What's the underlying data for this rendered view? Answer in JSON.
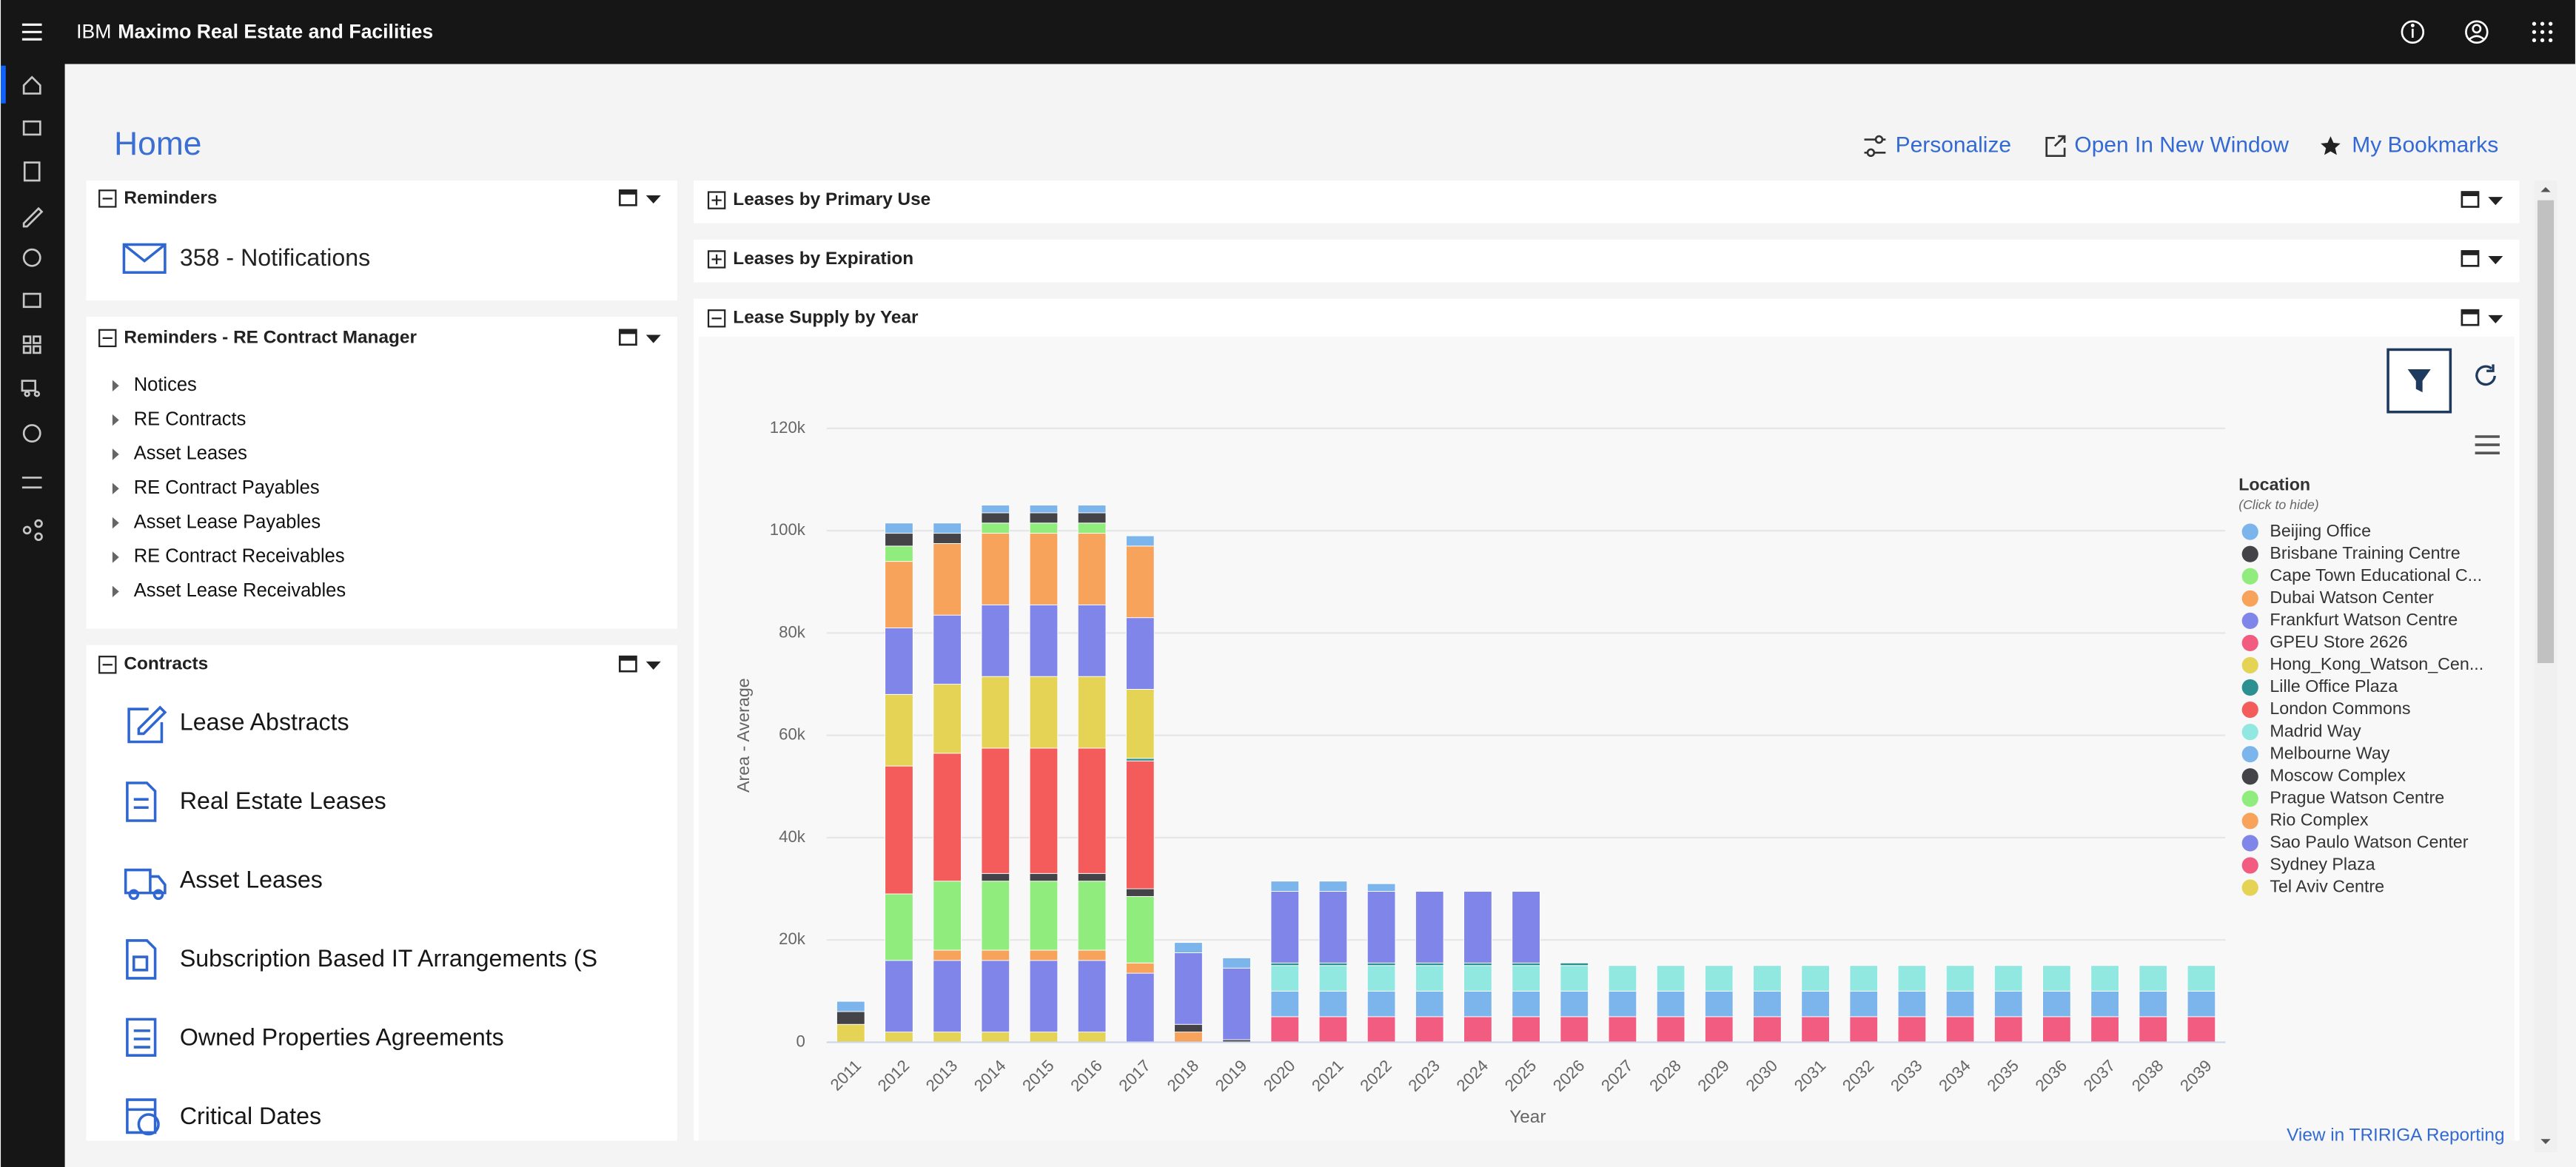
{
  "header": {
    "brand": "IBM",
    "product": "Maximo Real Estate and Facilities"
  },
  "page": {
    "title": "Home",
    "actions": [
      "Personalize",
      "Open In New Window",
      "My Bookmarks"
    ]
  },
  "portlets": {
    "reminders": {
      "title": "Reminders",
      "notification": "358 - Notifications"
    },
    "contract_manager": {
      "title": "Reminders - RE Contract Manager",
      "items": [
        "Notices",
        "RE Contracts",
        "Asset Leases",
        "RE Contract Payables",
        "Asset Lease Payables",
        "RE Contract Receivables",
        "Asset Lease Receivables"
      ]
    },
    "contracts": {
      "title": "Contracts",
      "items": [
        "Lease Abstracts",
        "Real Estate Leases",
        "Asset Leases",
        "Subscription Based IT Arrangements (S",
        "Owned Properties Agreements",
        "Critical Dates"
      ]
    },
    "primary_use": {
      "title": "Leases by Primary Use"
    },
    "expiration": {
      "title": "Leases by Expiration"
    },
    "lease_supply": {
      "title": "Lease Supply by Year",
      "link": "View in TRIRIGA Reporting"
    }
  },
  "chart_data": {
    "type": "bar",
    "stacked": true,
    "x_label": "Year",
    "y_label": "Area - Average",
    "legend_title": "Location",
    "legend_subtitle": "(Click to hide)",
    "legend": "right",
    "grid": true,
    "categories": [
      "2011",
      "2012",
      "2013",
      "2014",
      "2015",
      "2016",
      "2017",
      "2018",
      "2019",
      "2020",
      "2021",
      "2022",
      "2023",
      "2024",
      "2025",
      "2026",
      "2027",
      "2028",
      "2029",
      "2030",
      "2031",
      "2032",
      "2033",
      "2034",
      "2035",
      "2036",
      "2037",
      "2038",
      "2039"
    ],
    "ylim": [
      0,
      120000
    ],
    "yticks": [
      0,
      {
        "value": 20000,
        "label": "20k"
      },
      {
        "value": 40000,
        "label": "40k"
      },
      {
        "value": 60000,
        "label": "60k"
      },
      {
        "value": 80000,
        "label": "80k"
      },
      {
        "value": 100000,
        "label": "100k"
      },
      {
        "value": 120000,
        "label": "120k"
      }
    ],
    "series": [
      {
        "name": "Beijing Office",
        "color": "#7cb5ec",
        "values": [
          0,
          2000,
          2000,
          1500,
          1500,
          1500,
          2000,
          2000,
          2000,
          2000,
          2000,
          1500,
          0,
          0,
          0,
          0,
          0,
          0,
          0,
          0,
          0,
          0,
          0,
          0,
          0,
          0,
          0,
          0,
          0
        ]
      },
      {
        "name": "Brisbane Training Centre",
        "color": "#434348",
        "values": [
          0,
          2500,
          2000,
          2000,
          2000,
          2000,
          0,
          0,
          0,
          0,
          0,
          0,
          0,
          0,
          0,
          0,
          0,
          0,
          0,
          0,
          0,
          0,
          0,
          0,
          0,
          0,
          0,
          0,
          0
        ]
      },
      {
        "name": "Cape Town Educational C...",
        "color": "#90ed7d",
        "values": [
          0,
          3000,
          0,
          2000,
          2000,
          2000,
          0,
          0,
          0,
          0,
          0,
          0,
          0,
          0,
          0,
          0,
          0,
          0,
          0,
          0,
          0,
          0,
          0,
          0,
          0,
          0,
          0,
          0,
          0
        ]
      },
      {
        "name": "Dubai Watson Center",
        "color": "#f7a35c",
        "values": [
          0,
          13000,
          14000,
          14000,
          14000,
          14000,
          14000,
          0,
          0,
          0,
          0,
          0,
          0,
          0,
          0,
          0,
          0,
          0,
          0,
          0,
          0,
          0,
          0,
          0,
          0,
          0,
          0,
          0,
          0
        ]
      },
      {
        "name": "Frankfurt Watson Centre",
        "color": "#8085e9",
        "values": [
          0,
          13000,
          13500,
          14000,
          14000,
          14000,
          14000,
          14000,
          14000,
          14000,
          14000,
          14000,
          14000,
          14000,
          14000,
          0,
          0,
          0,
          0,
          0,
          0,
          0,
          0,
          0,
          0,
          0,
          0,
          0,
          0
        ]
      },
      {
        "name": "GPEU Store 2626",
        "color": "#f15c80",
        "values": [
          0,
          0,
          0,
          0,
          0,
          0,
          0,
          0,
          0,
          0,
          0,
          0,
          0,
          0,
          0,
          0,
          0,
          0,
          0,
          0,
          0,
          0,
          0,
          0,
          0,
          0,
          0,
          0,
          0
        ]
      },
      {
        "name": "Hong_Kong_Watson_Cen...",
        "color": "#e4d354",
        "values": [
          0,
          14000,
          13500,
          14000,
          14000,
          14000,
          13500,
          0,
          0,
          0,
          0,
          0,
          0,
          0,
          0,
          0,
          0,
          0,
          0,
          0,
          0,
          0,
          0,
          0,
          0,
          0,
          0,
          0,
          0
        ]
      },
      {
        "name": "Lille Office Plaza",
        "color": "#2b908f",
        "values": [
          0,
          0,
          0,
          0,
          0,
          0,
          500,
          0,
          0,
          500,
          500,
          500,
          500,
          500,
          500,
          500,
          0,
          0,
          0,
          0,
          0,
          0,
          0,
          0,
          0,
          0,
          0,
          0,
          0
        ]
      },
      {
        "name": "London Commons",
        "color": "#f45b5b",
        "values": [
          0,
          25000,
          25000,
          24500,
          24500,
          24500,
          25000,
          0,
          0,
          0,
          0,
          0,
          0,
          0,
          0,
          0,
          0,
          0,
          0,
          0,
          0,
          0,
          0,
          0,
          0,
          0,
          0,
          0,
          0
        ]
      },
      {
        "name": "Madrid Way",
        "color": "#91e8e1",
        "values": [
          0,
          0,
          0,
          0,
          0,
          0,
          0,
          0,
          0,
          5000,
          5000,
          5000,
          5000,
          5000,
          5000,
          5000,
          5000,
          5000,
          5000,
          5000,
          5000,
          5000,
          5000,
          5000,
          5000,
          5000,
          5000,
          5000,
          5000
        ]
      },
      {
        "name": "Melbourne Way",
        "color": "#7cb5ec",
        "values": [
          2000,
          0,
          0,
          0,
          0,
          0,
          0,
          0,
          0,
          5000,
          5000,
          5000,
          5000,
          5000,
          5000,
          5000,
          5000,
          5000,
          5000,
          5000,
          5000,
          5000,
          5000,
          5000,
          5000,
          5000,
          5000,
          5000,
          5000
        ]
      },
      {
        "name": "Moscow Complex",
        "color": "#434348",
        "values": [
          2500,
          0,
          0,
          1500,
          1500,
          1500,
          1500,
          1500,
          500,
          0,
          0,
          0,
          0,
          0,
          0,
          0,
          0,
          0,
          0,
          0,
          0,
          0,
          0,
          0,
          0,
          0,
          0,
          0,
          0
        ]
      },
      {
        "name": "Prague Watson Centre",
        "color": "#90ed7d",
        "values": [
          0,
          13000,
          13500,
          13500,
          13500,
          13500,
          13000,
          0,
          0,
          0,
          0,
          0,
          0,
          0,
          0,
          0,
          0,
          0,
          0,
          0,
          0,
          0,
          0,
          0,
          0,
          0,
          0,
          0,
          0
        ]
      },
      {
        "name": "Rio Complex",
        "color": "#f7a35c",
        "values": [
          0,
          0,
          2000,
          2000,
          2000,
          2000,
          2000,
          2000,
          0,
          0,
          0,
          0,
          0,
          0,
          0,
          0,
          0,
          0,
          0,
          0,
          0,
          0,
          0,
          0,
          0,
          0,
          0,
          0,
          0
        ]
      },
      {
        "name": "Sao Paulo Watson Center",
        "color": "#8085e9",
        "values": [
          0,
          14000,
          14000,
          14000,
          14000,
          14000,
          13500,
          0,
          0,
          0,
          0,
          0,
          0,
          0,
          0,
          0,
          0,
          0,
          0,
          0,
          0,
          0,
          0,
          0,
          0,
          0,
          0,
          0,
          0
        ]
      },
      {
        "name": "Sydney Plaza",
        "color": "#f15c80",
        "values": [
          0,
          0,
          0,
          0,
          0,
          0,
          0,
          0,
          0,
          5000,
          5000,
          5000,
          5000,
          5000,
          5000,
          5000,
          5000,
          5000,
          5000,
          5000,
          5000,
          5000,
          5000,
          5000,
          5000,
          5000,
          5000,
          5000,
          5000
        ]
      },
      {
        "name": "Tel Aviv Centre",
        "color": "#e4d354",
        "values": [
          3500,
          2000,
          2000,
          2000,
          2000,
          2000,
          0,
          0,
          0,
          0,
          0,
          0,
          0,
          0,
          0,
          0,
          0,
          0,
          0,
          0,
          0,
          0,
          0,
          0,
          0,
          0,
          0,
          0,
          0
        ]
      }
    ]
  }
}
